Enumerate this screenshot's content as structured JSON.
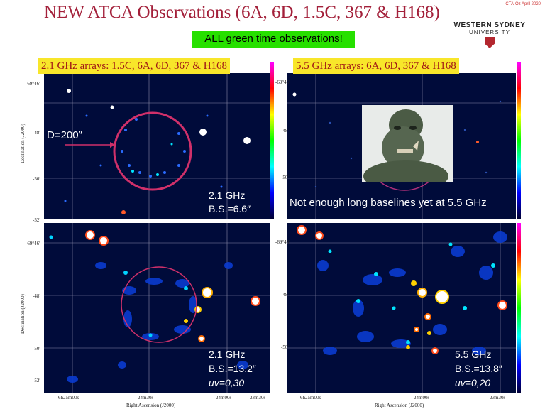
{
  "header": {
    "title": "NEW ATCA Observations (6A, 6D, 1.5C, 367 & H168)",
    "date_stamp": "CTA-Oz April 2020",
    "logo_line1": "WESTERN SYDNEY",
    "logo_line2": "UNIVERSITY"
  },
  "banner": "ALL green time observations!",
  "labels": {
    "left_arrays": "2.1 GHz arrays: 1.5C, 6A, 6D, 367 & H168",
    "right_arrays": "5.5 GHz arrays: 6A, 6D, 367 & H168",
    "diameter": "D=200″",
    "note": "Not enough long baselines yet at 5.5 GHz"
  },
  "panels": {
    "top_left": {
      "freq": "2.1 GHz",
      "beam": "B.S.=6.6″"
    },
    "bottom_left": {
      "freq": "2.1 GHz",
      "beam": "B.S.=13.2″",
      "uv": "uv=0,30"
    },
    "bottom_right": {
      "freq": "5.5 GHz",
      "beam": "B.S.=13.8″",
      "uv": "uv=0,20"
    }
  },
  "axes": {
    "dec_label": "Declination (J2000)",
    "ra_label": "Right Ascension (J2000)",
    "dec_ticks_top": [
      "-69°46′",
      "-48′",
      "-50′",
      "-52′"
    ],
    "dec_ticks_bottom": [
      "-69°46′",
      "-48′",
      "-50′",
      "-52′"
    ],
    "ra_ticks": [
      "6h25m00s",
      "24m30s",
      "24m00s",
      "23m30s"
    ]
  },
  "colors": {
    "title": "#a3203a",
    "banner": "#26e000",
    "label_bg": "#f8e62a",
    "label_text": "#a01515",
    "circle": "#d0306a"
  }
}
